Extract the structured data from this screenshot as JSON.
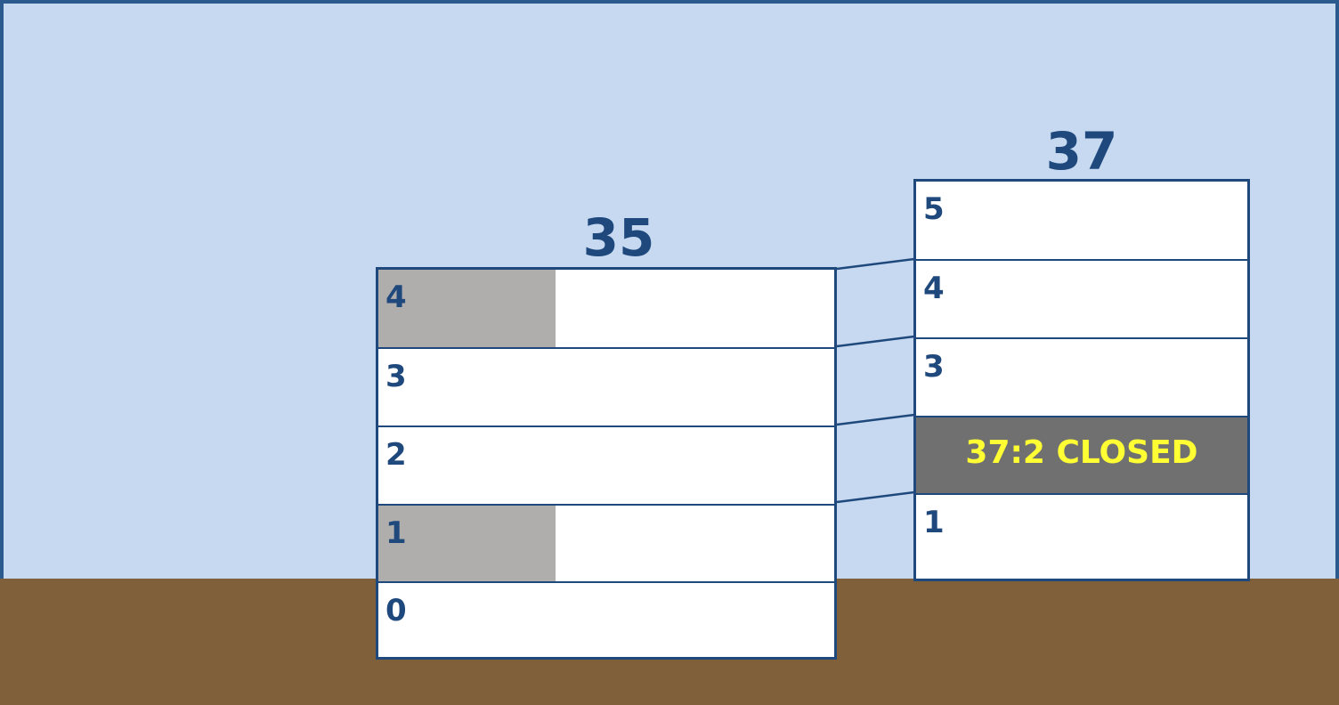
{
  "colors": {
    "sky": "#c6d9f1",
    "ground": "#7f603b",
    "outline": "#1f497d",
    "floor_bg": "#ffffff",
    "shaded": "#afaeac",
    "closed_bg": "#707070",
    "closed_text": "#ffff33"
  },
  "building_35": {
    "title": "35",
    "floors": [
      {
        "label": "4",
        "shaded": true
      },
      {
        "label": "3",
        "shaded": false
      },
      {
        "label": "2",
        "shaded": false
      },
      {
        "label": "1",
        "shaded": true
      },
      {
        "label": "0",
        "shaded": false
      }
    ]
  },
  "building_37": {
    "title": "37",
    "floors": [
      {
        "label": "5"
      },
      {
        "label": "4"
      },
      {
        "label": "3"
      },
      {
        "label": "",
        "closed_text": "37:2 CLOSED"
      },
      {
        "label": "1"
      }
    ]
  }
}
